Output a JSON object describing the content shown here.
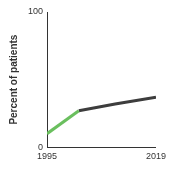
{
  "chart_data": {
    "type": "line",
    "y_label": "Percent of patients",
    "x": [
      1995,
      2002,
      2010,
      2019
    ],
    "series": [
      {
        "color": "#6abf5e",
        "values": [
          10,
          27,
          null,
          null
        ]
      },
      {
        "color": "#3d3d3d",
        "values": [
          null,
          27,
          32,
          37
        ]
      }
    ],
    "xlim": [
      1995,
      2019
    ],
    "xticks": [
      1995,
      2019
    ],
    "ylim": [
      0,
      100
    ],
    "yticks": [
      0,
      100
    ],
    "grid": false
  }
}
